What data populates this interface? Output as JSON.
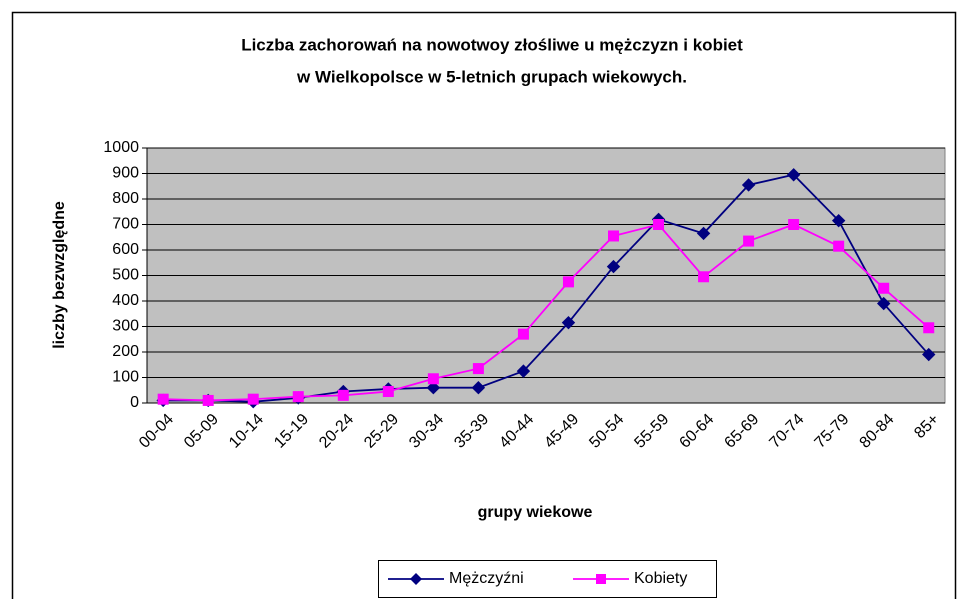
{
  "chart_data": {
    "type": "line",
    "title": [
      "Liczba zachorowań na nowotwoy złośliwe u mężczyzn i kobiet",
      "w Wielkopolsce w 5-letnich grupach wiekowych."
    ],
    "x_label": "grupy wiekowe",
    "y_label": "liczby bezwzględne",
    "categories": [
      "00-04",
      "05-09",
      "10-14",
      "15-19",
      "20-24",
      "25-29",
      "30-34",
      "35-39",
      "40-44",
      "45-49",
      "50-54",
      "55-59",
      "60-64",
      "65-69",
      "70-74",
      "75-79",
      "80-84",
      "85+"
    ],
    "series": [
      {
        "name": "Mężczyźni",
        "color": "#000080",
        "marker": "diamond",
        "values": [
          10,
          10,
          5,
          20,
          45,
          55,
          60,
          60,
          125,
          315,
          535,
          720,
          665,
          855,
          895,
          715,
          390,
          190
        ]
      },
      {
        "name": "Kobiety",
        "color": "#FF00FF",
        "marker": "square",
        "values": [
          15,
          10,
          15,
          25,
          30,
          45,
          95,
          135,
          270,
          475,
          655,
          700,
          495,
          635,
          700,
          615,
          450,
          295
        ]
      }
    ],
    "ylim": [
      0,
      1000
    ],
    "yticks": [
      0,
      100,
      200,
      300,
      400,
      500,
      600,
      700,
      800,
      900,
      1000
    ],
    "grid": true,
    "legend": "bottom"
  }
}
